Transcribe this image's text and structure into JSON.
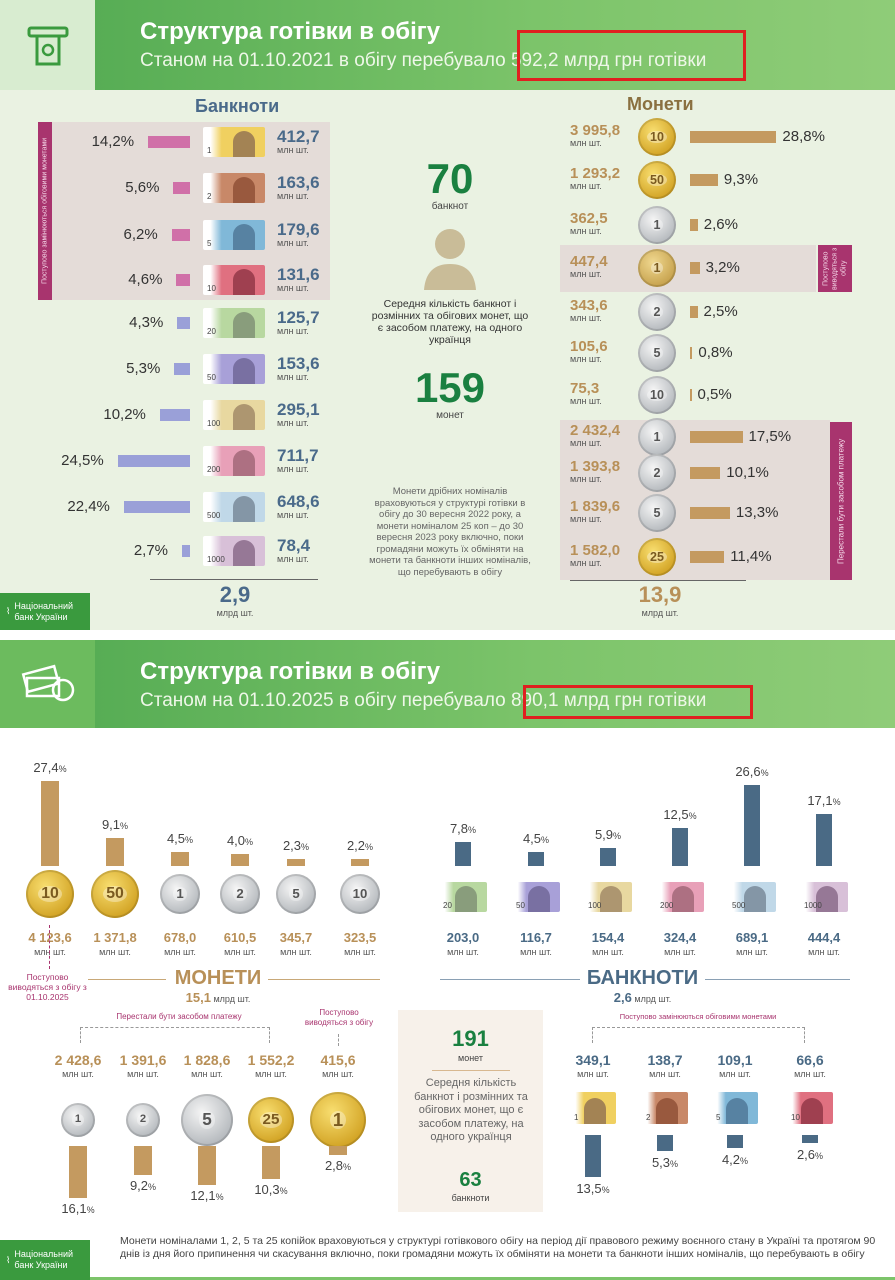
{
  "colors": {
    "green": "#4fa850",
    "pink_bar": "#d070a8",
    "lavender_bar": "#9aa0d8",
    "gold_bar": "#c49a60",
    "blue_bar": "#4a6a85",
    "magenta": "#a8346e",
    "highlight": "#e02020"
  },
  "p2021": {
    "title": "Структура готівки в обігу",
    "subtitle_prefix": "Станом на 01.10.2021 в обігу перебувало",
    "subtitle_highlight": "592,2 млрд грн готівки",
    "banknotes": {
      "title": "Банкноти",
      "side_label": "Поступово замінюються обіговими монетами",
      "unit": "млн шт.",
      "items": [
        {
          "den": "1",
          "pct": "14,2%",
          "value": "412,7",
          "p": 14.2
        },
        {
          "den": "2",
          "pct": "5,6%",
          "value": "163,6",
          "p": 5.6
        },
        {
          "den": "5",
          "pct": "6,2%",
          "value": "179,6",
          "p": 6.2
        },
        {
          "den": "10",
          "pct": "4,6%",
          "value": "131,6",
          "p": 4.6
        },
        {
          "den": "20",
          "pct": "4,3%",
          "value": "125,7",
          "p": 4.3
        },
        {
          "den": "50",
          "pct": "5,3%",
          "value": "153,6",
          "p": 5.3
        },
        {
          "den": "100",
          "pct": "10,2%",
          "value": "295,1",
          "p": 10.2
        },
        {
          "den": "200",
          "pct": "24,5%",
          "value": "711,7",
          "p": 24.5
        },
        {
          "den": "500",
          "pct": "22,4%",
          "value": "648,6",
          "p": 22.4
        },
        {
          "den": "1000",
          "pct": "2,7%",
          "value": "78,4",
          "p": 2.7
        }
      ],
      "total": "2,9",
      "total_unit": "млрд шт."
    },
    "middle": {
      "banknotes_num": "70",
      "banknotes_label": "банкнот",
      "avg_text": "Середня кількість банкнот і розмінних та обігових монет, що є засобом платежу, на одного українця",
      "coins_num": "159",
      "coins_label": "монет",
      "note": "Монети дрібних номіналів враховуються у структурі готівки в обігу до 30 вересня 2022 року, а монети номіналом 25 коп – до 30 вересня 2023 року включно, поки громадяни можуть їх обміняти на монети та банкноти інших номіналів, що перебувають в обігу"
    },
    "coins": {
      "title": "Монети",
      "unit": "млн шт.",
      "label_withdrawn": "Поступово виводяться з обігу",
      "label_ceased": "Перестали бути засобом платежу",
      "items": [
        {
          "den": "10",
          "type": "gold",
          "value": "3 995,8",
          "pct": "28,8%",
          "p": 28.8
        },
        {
          "den": "50",
          "type": "gold",
          "value": "1 293,2",
          "pct": "9,3%",
          "p": 9.3
        },
        {
          "den": "1",
          "type": "silver",
          "value": "362,5",
          "pct": "2,6%",
          "p": 2.6
        },
        {
          "den": "1",
          "type": "brass",
          "value": "447,4",
          "pct": "3,2%",
          "p": 3.2
        },
        {
          "den": "2",
          "type": "silver",
          "value": "343,6",
          "pct": "2,5%",
          "p": 2.5
        },
        {
          "den": "5",
          "type": "silver",
          "value": "105,6",
          "pct": "0,8%",
          "p": 0.8
        },
        {
          "den": "10",
          "type": "silver",
          "value": "75,3",
          "pct": "0,5%",
          "p": 0.5
        },
        {
          "den": "1",
          "type": "silver",
          "value": "2 432,4",
          "pct": "17,5%",
          "p": 17.5
        },
        {
          "den": "2",
          "type": "silver",
          "value": "1 393,8",
          "pct": "10,1%",
          "p": 10.1
        },
        {
          "den": "5",
          "type": "silver",
          "value": "1 839,6",
          "pct": "13,3%",
          "p": 13.3
        },
        {
          "den": "25",
          "type": "gold",
          "value": "1 582,0",
          "pct": "11,4%",
          "p": 11.4
        }
      ],
      "total": "13,9",
      "total_unit": "млрд шт."
    },
    "logo": "Національний банк України"
  },
  "p2025": {
    "title": "Структура готівки в обігу",
    "subtitle_prefix": "Станом на 01.10.2025  в обігу перебувало",
    "subtitle_highlight": "890,1 млрд грн готівки",
    "unit": "млн шт.",
    "coins_top": [
      {
        "den": "10",
        "type": "gold",
        "pct": "27,4",
        "p": 27.4,
        "value": "4 123,6"
      },
      {
        "den": "50",
        "type": "gold",
        "pct": "9,1",
        "p": 9.1,
        "value": "1 371,8"
      },
      {
        "den": "1",
        "type": "silver",
        "pct": "4,5",
        "p": 4.5,
        "value": "678,0"
      },
      {
        "den": "2",
        "type": "silver",
        "pct": "4,0",
        "p": 4.0,
        "value": "610,5"
      },
      {
        "den": "5",
        "type": "silver",
        "pct": "2,3",
        "p": 2.3,
        "value": "345,7"
      },
      {
        "den": "10",
        "type": "silver",
        "pct": "2,2",
        "p": 2.2,
        "value": "323,5"
      }
    ],
    "banknotes_top": [
      {
        "den": "20",
        "pct": "7,8",
        "p": 7.8,
        "value": "203,0"
      },
      {
        "den": "50",
        "pct": "4,5",
        "p": 4.5,
        "value": "116,7"
      },
      {
        "den": "100",
        "pct": "5,9",
        "p": 5.9,
        "value": "154,4"
      },
      {
        "den": "200",
        "pct": "12,5",
        "p": 12.5,
        "value": "324,4"
      },
      {
        "den": "500",
        "pct": "26,6",
        "p": 26.6,
        "value": "689,1"
      },
      {
        "den": "1000",
        "pct": "17,1",
        "p": 17.1,
        "value": "444,4"
      }
    ],
    "coins_label_withdrawn_2025": "Поступово виводяться з обігу з 01.10.2025",
    "coins_title": "МОНЕТИ",
    "coins_total": "15,1",
    "coins_total_unit": "млрд шт.",
    "banknotes_title": "БАНКНОТИ",
    "banknotes_total": "2,6",
    "banknotes_total_unit": "млрд шт.",
    "label_ceased": "Перестали бути засобом платежу",
    "label_withdrawn": "Поступово виводяться з обігу",
    "label_replaced": "Поступово замінюються обіговими монетами",
    "coins_bottom": [
      {
        "den": "1",
        "type": "silver",
        "value": "2 428,6",
        "pct": "16,1",
        "p": 16.1
      },
      {
        "den": "2",
        "type": "silver",
        "value": "1 391,6",
        "pct": "9,2",
        "p": 9.2
      },
      {
        "den": "5",
        "type": "silver",
        "value": "1 828,6",
        "pct": "12,1",
        "p": 12.1
      },
      {
        "den": "25",
        "type": "gold",
        "value": "1 552,2",
        "pct": "10,3",
        "p": 10.3
      },
      {
        "den": "1",
        "type": "gold",
        "value": "415,6",
        "pct": "2,8",
        "p": 2.8
      }
    ],
    "banknotes_bottom": [
      {
        "den": "1",
        "value": "349,1",
        "pct": "13,5",
        "p": 13.5
      },
      {
        "den": "2",
        "value": "138,7",
        "pct": "5,3",
        "p": 5.3
      },
      {
        "den": "5",
        "value": "109,1",
        "pct": "4,2",
        "p": 4.2
      },
      {
        "den": "10",
        "value": "66,6",
        "pct": "2,6",
        "p": 2.6
      }
    ],
    "box": {
      "coins_num": "191",
      "coins_label": "монет",
      "text": "Середня кількість банкнот і розмінних та обігових монет, що є засобом платежу, на одного українця",
      "banknotes_num": "63",
      "banknotes_label": "банкноти"
    },
    "footnote": "Монети номіналами 1, 2, 5 та 25 копійок враховуються у структурі готівкового обігу на період дії правового режиму воєнного стану в Україні та протягом 90 днів із дня його припинення чи скасування включно, поки громадяни можуть їх обміняти на  монети та  банкноти інших номіналів, що перебувають в обігу",
    "logo": "Національний банк України"
  }
}
